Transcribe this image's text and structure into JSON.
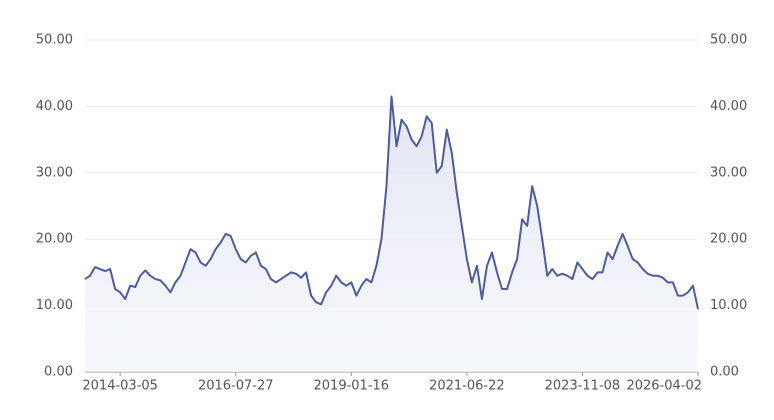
{
  "chart_data": {
    "type": "area",
    "color": "#4d5c9e",
    "fill": "#e9ebf6",
    "categories": [
      null,
      null,
      null,
      null,
      null,
      null,
      null,
      "2014-03-05",
      null,
      null,
      null,
      null,
      null,
      null,
      null,
      null,
      null,
      null,
      null,
      null,
      null,
      null,
      null,
      null,
      null,
      null,
      null,
      null,
      null,
      null,
      "2016-07-27",
      null,
      null,
      null,
      null,
      null,
      null,
      null,
      null,
      null,
      null,
      null,
      null,
      null,
      null,
      null,
      null,
      null,
      null,
      null,
      null,
      null,
      null,
      "2019-01-16",
      null,
      null,
      null,
      null,
      null,
      null,
      null,
      null,
      null,
      null,
      null,
      null,
      null,
      null,
      null,
      null,
      null,
      null,
      null,
      null,
      null,
      null,
      "2021-06-22",
      null,
      null,
      null,
      null,
      null,
      null,
      null,
      null,
      null,
      null,
      null,
      null,
      null,
      null,
      null,
      null,
      null,
      null,
      null,
      null,
      null,
      null,
      "2023-11-08",
      null,
      null,
      null,
      null,
      null,
      null,
      null,
      null,
      null,
      null,
      null,
      null,
      null,
      null,
      null,
      null,
      null,
      null,
      null,
      null,
      null,
      null,
      "2026-04-02"
    ],
    "values": [
      14,
      14.5,
      15.8,
      15.5,
      15.2,
      15.5,
      12.5,
      12,
      11,
      13,
      12.8,
      14.5,
      15.3,
      14.5,
      14,
      13.8,
      13,
      12,
      13.5,
      14.5,
      16.5,
      18.5,
      18,
      16.5,
      16,
      17,
      18.5,
      19.5,
      20.8,
      20.5,
      18.5,
      17,
      16.5,
      17.5,
      18,
      16,
      15.5,
      14,
      13.5,
      14,
      14.5,
      15,
      14.8,
      14.2,
      15,
      11.5,
      10.5,
      10.2,
      12,
      13,
      14.5,
      13.5,
      13,
      13.5,
      11.5,
      13,
      14,
      13.5,
      16,
      20,
      28,
      41.5,
      34,
      38,
      37,
      35,
      34,
      35.5,
      38.5,
      37.5,
      30,
      31,
      36.5,
      33,
      27,
      22,
      17,
      13.5,
      16,
      11,
      16,
      18,
      15,
      12.5,
      12.5,
      15,
      17,
      23,
      22,
      28,
      25,
      20,
      14.5,
      15.5,
      14.5,
      14.8,
      14.5,
      14,
      16.5,
      15.5,
      14.5,
      14,
      15,
      15,
      18,
      17,
      19,
      20.8,
      19,
      17,
      16.5,
      15.5,
      14.8,
      14.5,
      14.5,
      14.2,
      13.5,
      13.5,
      11.5,
      11.5,
      12,
      13,
      9.5
    ],
    "ylim": [
      0,
      50
    ],
    "yticks": [
      {
        "value": 0,
        "label": "0.00"
      },
      {
        "value": 10,
        "label": "10.00"
      },
      {
        "value": 20,
        "label": "20.00"
      },
      {
        "value": 30,
        "label": "30.00"
      },
      {
        "value": 40,
        "label": "40.00"
      },
      {
        "value": 50,
        "label": "50.00"
      }
    ],
    "y2lim": [
      0,
      50
    ],
    "y2ticks": [
      {
        "value": 0,
        "label": "0.00"
      },
      {
        "value": 10,
        "label": "10.00"
      },
      {
        "value": 20,
        "label": "20.00"
      },
      {
        "value": 30,
        "label": "30.00"
      },
      {
        "value": 40,
        "label": "40.00"
      },
      {
        "value": 50,
        "label": "50.00"
      }
    ],
    "grid": true
  }
}
